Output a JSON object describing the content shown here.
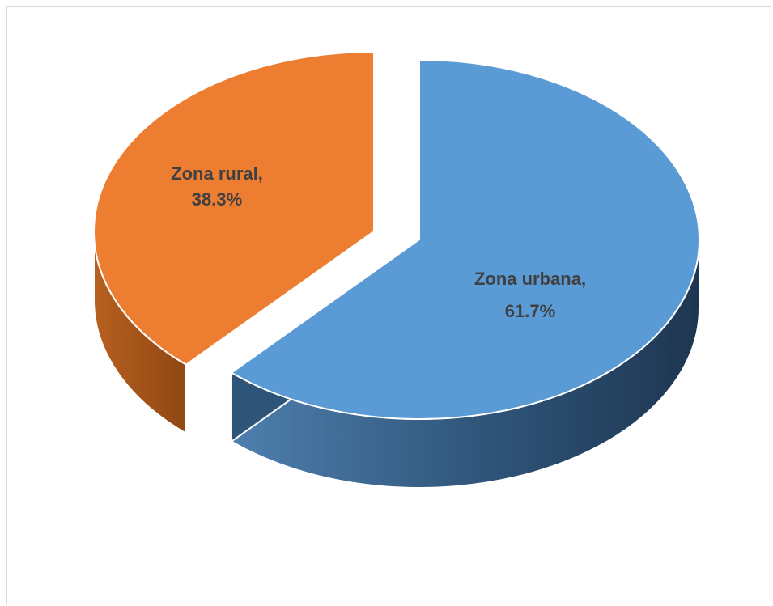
{
  "chart_data": {
    "type": "pie",
    "style": "3d-exploded",
    "title": "",
    "slices": [
      {
        "label": "Zona urbana",
        "value": 61.7,
        "value_label": "61.7%",
        "color": "#5B9BD5",
        "side_color": "#2E5478"
      },
      {
        "label": "Zona rural",
        "value": 38.3,
        "value_label": "38.3%",
        "color": "#ED7D31",
        "side_color": "#A6531E"
      }
    ],
    "legend": "none"
  }
}
